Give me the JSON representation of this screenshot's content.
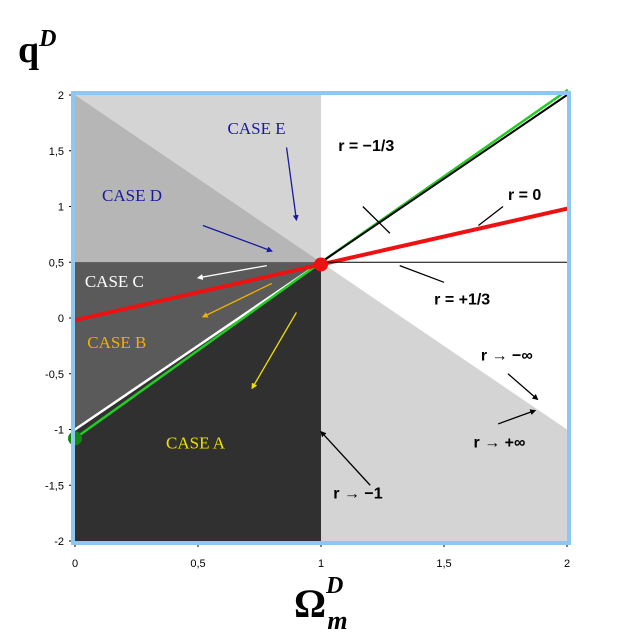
{
  "chart_data": {
    "type": "line",
    "ylabel": "q",
    "ylabel_sup": "D",
    "xlabel": "Ω",
    "xlabel_sub": "m",
    "xlabel_sup": "D",
    "xlim": [
      0,
      2
    ],
    "ylim": [
      -2,
      2
    ],
    "x_ticks": [
      {
        "v": 0,
        "label": "0"
      },
      {
        "v": 0.5,
        "label": "0,5"
      },
      {
        "v": 1,
        "label": "1"
      },
      {
        "v": 1.5,
        "label": "1,5"
      },
      {
        "v": 2,
        "label": "2"
      }
    ],
    "y_ticks": [
      {
        "v": 2,
        "label": "2"
      },
      {
        "v": 1.5,
        "label": "1,5"
      },
      {
        "v": 1,
        "label": "1"
      },
      {
        "v": 0.5,
        "label": "0,5"
      },
      {
        "v": 0,
        "label": "0"
      },
      {
        "v": -0.5,
        "label": "-0,5"
      },
      {
        "v": -1,
        "label": "-1"
      },
      {
        "v": -1.5,
        "label": "-1,5"
      },
      {
        "v": -2,
        "label": "-2"
      }
    ],
    "regions": [
      {
        "name": "top-left",
        "color": "#d4d4d4",
        "points": [
          [
            0,
            0.5
          ],
          [
            1,
            0.5
          ],
          [
            1,
            2
          ],
          [
            0,
            2
          ]
        ]
      },
      {
        "name": "case-d-wedge",
        "color": "#b6b6b6",
        "points": [
          [
            0,
            2
          ],
          [
            1,
            0.5
          ],
          [
            0,
            0.5
          ]
        ]
      },
      {
        "name": "bottom-left",
        "color": "#303030",
        "points": [
          [
            0,
            -2
          ],
          [
            1,
            -2
          ],
          [
            1,
            0.5
          ],
          [
            0,
            0.5
          ]
        ]
      },
      {
        "name": "case-b-c-wedge",
        "color": "#5a5a5a",
        "points": [
          [
            0,
            -1
          ],
          [
            1,
            0.5
          ],
          [
            0,
            0.5
          ]
        ]
      },
      {
        "name": "bottom-right",
        "color": "#d4d4d4",
        "points": [
          [
            1,
            0.5
          ],
          [
            2,
            -1
          ],
          [
            2,
            -2
          ],
          [
            1,
            -2
          ]
        ]
      }
    ],
    "series": [
      {
        "name": "r = -1/3 (white)",
        "color": "#ffffff",
        "width": 2.5,
        "points": [
          [
            0,
            -1
          ],
          [
            2,
            2
          ]
        ]
      },
      {
        "name": "r = -1/3 (green)",
        "color": "#22cc22",
        "width": 2.5,
        "points": [
          [
            0,
            -1.08
          ],
          [
            1,
            0.5
          ],
          [
            2,
            2.04
          ]
        ]
      },
      {
        "name": "r = -1/3 (black)",
        "color": "#000000",
        "width": 2,
        "points": [
          [
            1,
            0.5
          ],
          [
            2,
            2
          ]
        ]
      },
      {
        "name": "r = 0",
        "color": "#ee1111",
        "width": 4,
        "points": [
          [
            0,
            -0.02
          ],
          [
            2,
            0.98
          ]
        ]
      },
      {
        "name": "r = +1/3",
        "color": "#000000",
        "width": 1,
        "points": [
          [
            1,
            0.5
          ],
          [
            2,
            0.5
          ]
        ]
      }
    ],
    "dots": [
      {
        "name": "red-dot",
        "x": 1,
        "y": 0.48,
        "color": "#ee1111"
      },
      {
        "name": "green-dot",
        "x": 0,
        "y": -1.08,
        "color": "#118811"
      }
    ],
    "case_labels": [
      {
        "text": "CASE E",
        "x": 0.62,
        "y": 1.65,
        "color": "#1a1aa0"
      },
      {
        "text": "CASE D",
        "x": 0.11,
        "y": 1.05,
        "color": "#1a1aa0"
      },
      {
        "text": "CASE C",
        "x": 0.04,
        "y": 0.28,
        "color": "#ffffff"
      },
      {
        "text": "CASE B",
        "x": 0.05,
        "y": -0.27,
        "color": "#f0b000"
      },
      {
        "text": "CASE A",
        "x": 0.37,
        "y": -1.17,
        "color": "#f0e000"
      }
    ],
    "r_labels": [
      {
        "text": "r = −1/3",
        "x": 1.07,
        "y": 1.5
      },
      {
        "text": "r = 0",
        "x": 1.76,
        "y": 1.06
      },
      {
        "text": "r = +1/3",
        "x": 1.46,
        "y": 0.12
      },
      {
        "text": "r → −∞",
        "x": 1.65,
        "y": -0.38
      },
      {
        "text": "r → +∞",
        "x": 1.62,
        "y": -1.16
      },
      {
        "text": "r → −1",
        "x": 1.05,
        "y": -1.62
      }
    ],
    "arrows": [
      {
        "from": [
          0.86,
          1.53
        ],
        "to": [
          0.9,
          0.88
        ],
        "color": "#1a1aa0"
      },
      {
        "from": [
          0.52,
          0.83
        ],
        "to": [
          0.8,
          0.6
        ],
        "color": "#1a1aa0"
      },
      {
        "from": [
          0.78,
          0.47
        ],
        "to": [
          0.5,
          0.36
        ],
        "color": "#ffffff"
      },
      {
        "from": [
          0.8,
          0.31
        ],
        "to": [
          0.52,
          0.01
        ],
        "color": "#f0b000"
      },
      {
        "from": [
          0.9,
          0.05
        ],
        "to": [
          0.72,
          -0.63
        ],
        "color": "#f0e000"
      },
      {
        "from": [
          1.17,
          1.0
        ],
        "to": [
          1.28,
          0.76
        ],
        "color": "#000000",
        "nohead": true
      },
      {
        "from": [
          1.64,
          0.83
        ],
        "to": [
          1.74,
          1.0
        ],
        "color": "#000000",
        "nohead": true
      },
      {
        "from": [
          1.32,
          0.47
        ],
        "to": [
          1.5,
          0.32
        ],
        "color": "#000000",
        "nohead": true
      },
      {
        "from": [
          1.76,
          -0.5
        ],
        "to": [
          1.88,
          -0.73
        ],
        "color": "#000000"
      },
      {
        "from": [
          1.72,
          -0.95
        ],
        "to": [
          1.87,
          -0.83
        ],
        "color": "#000000"
      },
      {
        "from": [
          1.2,
          -1.5
        ],
        "to": [
          1.0,
          -1.02
        ],
        "color": "#000000"
      }
    ]
  }
}
